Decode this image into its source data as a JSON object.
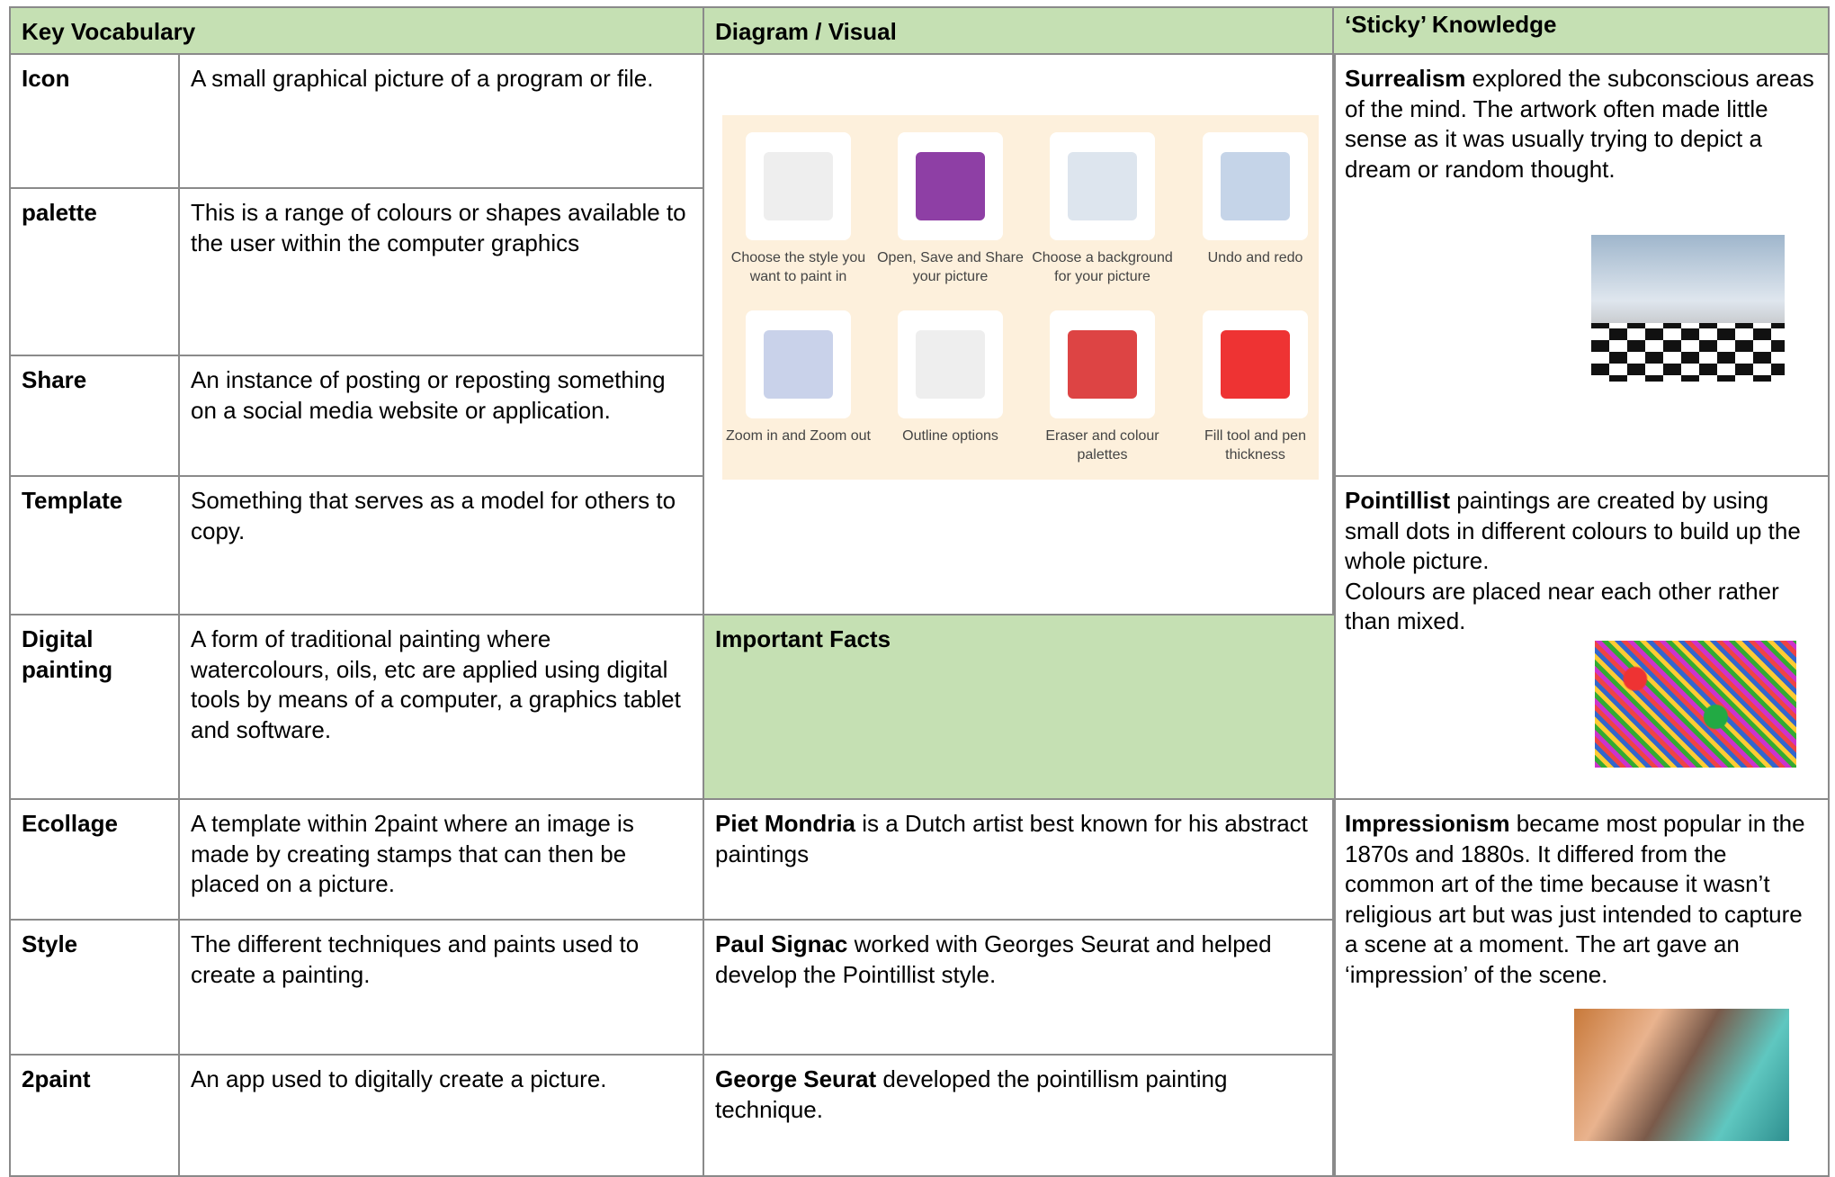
{
  "headers": [
    "Key Vocabulary",
    "Diagram / Visual",
    "‘Sticky’ Knowledge"
  ],
  "vocabulary": [
    {
      "term": "Icon",
      "definition": "A small graphical picture of a program or file."
    },
    {
      "term": "palette",
      "definition": "This is a range of colours or shapes available to the user within the computer graphics"
    },
    {
      "term": "Share",
      "definition": "An instance of posting or reposting something on a social media website or application."
    },
    {
      "term": "Template",
      "definition": "Something that serves as a model for others to copy."
    },
    {
      "term": "Digital painting",
      "definition": "A form of traditional painting where watercolours, oils, etc are applied using digital tools by means of a computer, a graphics tablet and software."
    },
    {
      "term": "Ecollage",
      "definition": "A template within 2paint where an image is made by creating stamps that can then be placed on a picture."
    },
    {
      "term": "Style",
      "definition": "The different techniques and paints used to create a painting."
    },
    {
      "term": "2paint",
      "definition": "An app used to digitally create a picture."
    }
  ],
  "diagram": {
    "captions": [
      "Choose the style you want to paint in",
      "Open, Save and Share your picture",
      "Choose a background for your picture",
      "Undo and redo",
      "Zoom in and Zoom out",
      "Outline options",
      "Eraser and colour palettes",
      "Fill tool and pen thickness"
    ]
  },
  "important_facts": {
    "title": "Important Facts",
    "facts": [
      {
        "name": "Piet Mondria",
        "text": "is a Dutch artist best known for his abstract paintings"
      },
      {
        "name": "Paul Signac",
        "text": "worked with Georges Seurat and helped develop the Pointillist style."
      },
      {
        "name": "George Seurat",
        "text": "developed the pointillism painting technique."
      }
    ]
  },
  "sticky": [
    {
      "name": "Surrealism",
      "text": "explored the subconscious areas of the mind. The artwork often made little sense as it was usually trying to depict a dream or random thought."
    },
    {
      "name": "Pointillist",
      "text": "paintings are created by using small dots in different colours to build up the whole picture.\nColours are placed near each other rather than mixed."
    },
    {
      "name": "Impressionism",
      "text": "became most popular in the 1870s and 1880s. It differed from the common art of the time because it wasn’t religious art but was just intended to capture a scene at a moment. The art gave an ‘impression’ of the scene."
    }
  ]
}
